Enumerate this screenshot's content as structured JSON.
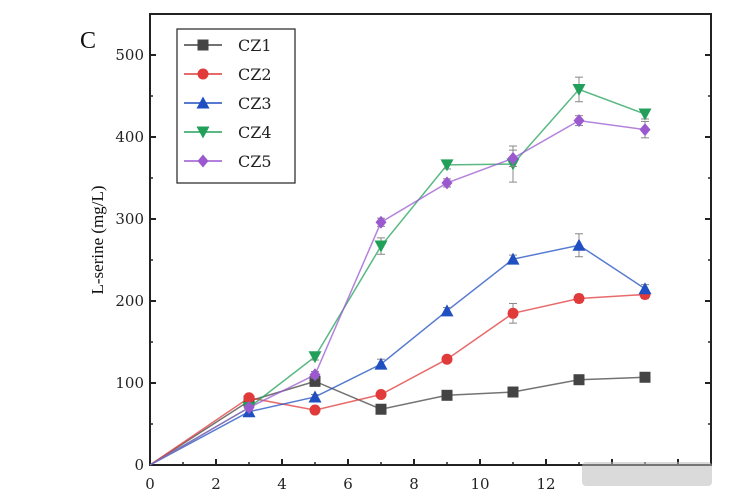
{
  "chart_data": {
    "type": "line",
    "panel_label": "C",
    "xlabel": "",
    "ylabel": "L-serine (mg/L)",
    "xlim": [
      0,
      17
    ],
    "ylim": [
      0,
      550
    ],
    "xticks": [
      0,
      2,
      4,
      6,
      8,
      10,
      12,
      14,
      16
    ],
    "xtick_labels": [
      "0",
      "2",
      "4",
      "6",
      "8",
      "10",
      "12",
      "",
      ""
    ],
    "yticks": [
      0,
      100,
      200,
      300,
      400,
      500
    ],
    "ytick_labels": [
      "0",
      "100",
      "200",
      "300",
      "400",
      "500"
    ],
    "grid": false,
    "legend_position": "top-left",
    "x": [
      0,
      3,
      5,
      7,
      9,
      11,
      13,
      15
    ],
    "series": [
      {
        "name": "CZ1",
        "color": "#444444",
        "marker": "square",
        "values": [
          0,
          78,
          102,
          68,
          85,
          89,
          104,
          107
        ],
        "errors": [
          0,
          3,
          3,
          3,
          3,
          4,
          4,
          4
        ]
      },
      {
        "name": "CZ2",
        "color": "#e03a3a",
        "marker": "circle",
        "values": [
          0,
          82,
          67,
          86,
          129,
          185,
          203,
          208
        ],
        "errors": [
          0,
          3,
          3,
          3,
          4,
          12,
          5,
          5
        ]
      },
      {
        "name": "CZ3",
        "color": "#1f4fc0",
        "marker": "triangle-up",
        "values": [
          0,
          65,
          83,
          123,
          188,
          251,
          268,
          215
        ],
        "errors": [
          0,
          3,
          3,
          6,
          4,
          5,
          14,
          5
        ]
      },
      {
        "name": "CZ4",
        "color": "#22a05a",
        "marker": "triangle-down",
        "values": [
          0,
          70,
          132,
          267,
          366,
          367,
          458,
          428
        ],
        "errors": [
          0,
          3,
          4,
          10,
          5,
          22,
          15,
          6
        ]
      },
      {
        "name": "CZ5",
        "color": "#9b59d0",
        "marker": "diamond",
        "values": [
          0,
          70,
          110,
          296,
          344,
          374,
          420,
          409
        ],
        "errors": [
          0,
          3,
          4,
          5,
          5,
          10,
          6,
          10
        ]
      }
    ]
  }
}
